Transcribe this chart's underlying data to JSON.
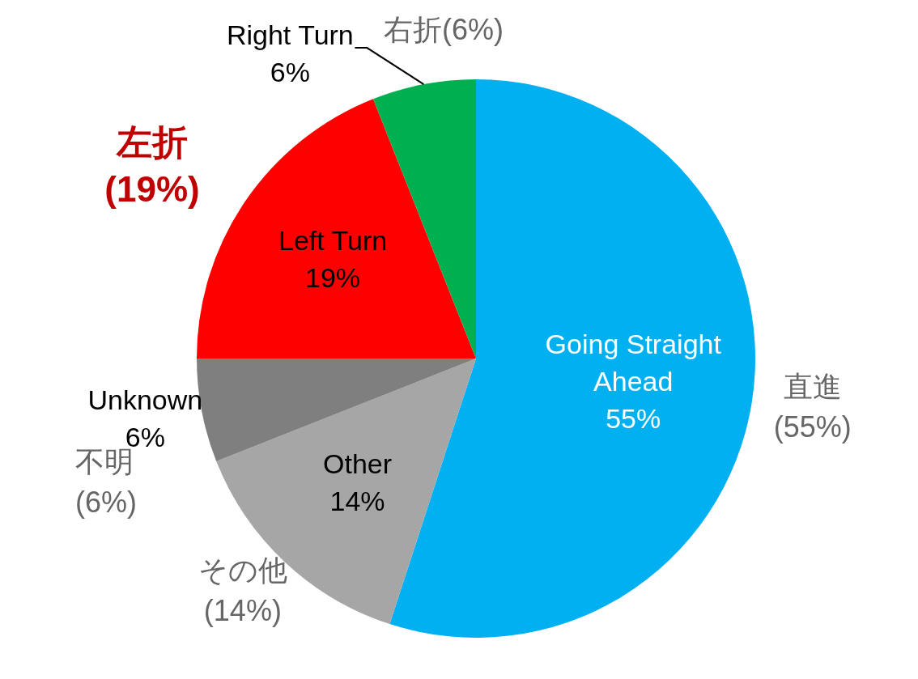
{
  "chart_data": {
    "type": "pie",
    "categories": [
      "Going Straight Ahead",
      "Other",
      "Unknown",
      "Left Turn",
      "Right Turn"
    ],
    "values": [
      55,
      14,
      6,
      19,
      6
    ],
    "colors": [
      "#00b0f0",
      "#a6a6a6",
      "#7f7f7f",
      "#ff0000",
      "#00b050"
    ],
    "value_labels": [
      "55%",
      "14%",
      "6%",
      "19%",
      "6%"
    ],
    "legend": false,
    "annotations": [
      "直進\n(55%)",
      "その他\n(14%)",
      "不明\n(6%)",
      "左折\n(19%)",
      "右折(6%)"
    ]
  }
}
